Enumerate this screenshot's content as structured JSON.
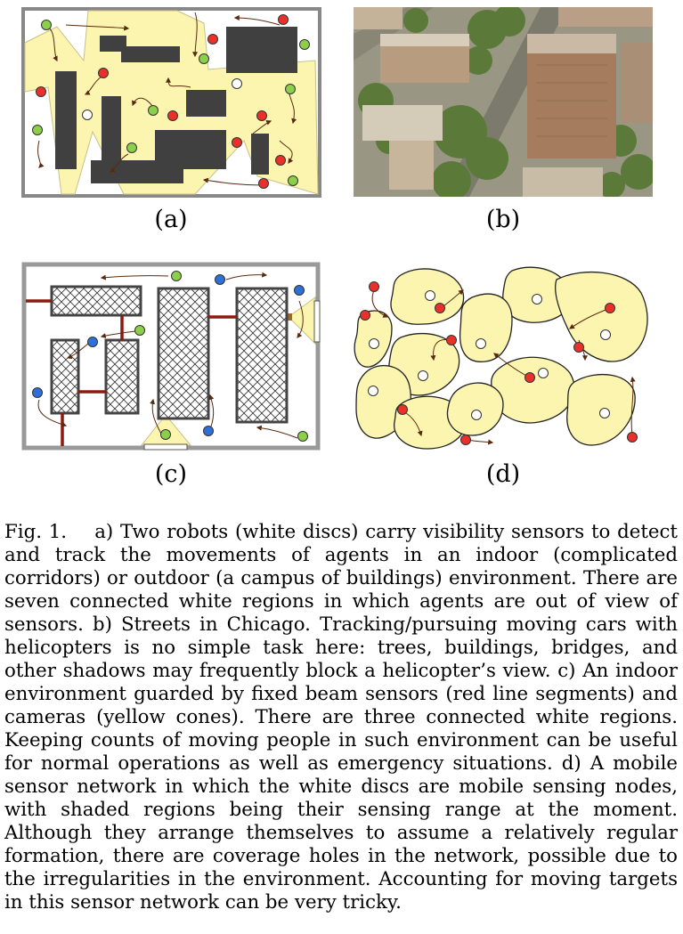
{
  "figure": {
    "panels": [
      {
        "id": "a",
        "label": "(a)",
        "content": "indoor/outdoor environment with robots carrying visibility sensors"
      },
      {
        "id": "b",
        "label": "(b)",
        "content": "aerial photograph of Chicago streets"
      },
      {
        "id": "c",
        "label": "(c)",
        "content": "indoor environment with beam sensors and cameras"
      },
      {
        "id": "d",
        "label": "(d)",
        "content": "mobile sensor network with sensing ranges"
      }
    ],
    "colors": {
      "sensing_region": "#fbf5b0",
      "obstacle": "#404040",
      "agent_red": "#e8312a",
      "agent_green": "#8ccf4a",
      "agent_blue": "#2f6fd8",
      "beam_sensor": "#8b1a10",
      "trajectory": "#5a2a10"
    }
  },
  "caption": {
    "prefix": "Fig. 1.",
    "text": "a) Two robots (white discs) carry visibility sensors to detect and track the movements of agents in an indoor (complicated corridors) or outdoor (a campus of buildings) environment. There are seven connected white regions in which agents are out of view of sensors. b) Streets in Chicago. Tracking/pursuing moving cars with helicopters is no simple task here: trees, buildings, bridges, and other shadows may frequently block a helicopter’s view. c) An indoor environment guarded by fixed beam sensors (red line segments) and cameras (yellow cones). There are three connected white regions. Keeping counts of moving people in such environment can be useful for normal operations as well as emergency situations. d) A mobile sensor network in which the white discs are mobile sensing nodes, with shaded regions being their sensing range at the moment. Although they arrange themselves to assume a relatively regular formation, there are coverage holes in the network, possible due to the irregularities in the environment. Accounting for moving targets in this sensor network can be very tricky."
  }
}
